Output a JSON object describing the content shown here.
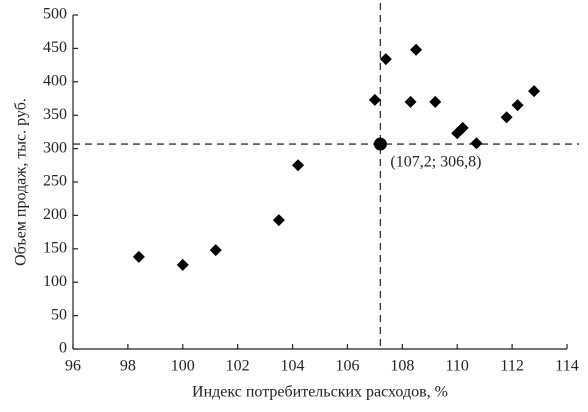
{
  "chart_data": {
    "type": "scatter",
    "x_label": "Индекс потребительских расходов, %",
    "y_label": "Объем продаж, тыс. руб.",
    "xlim": [
      96,
      114
    ],
    "xticks": [
      96,
      98,
      100,
      102,
      104,
      106,
      108,
      110,
      112,
      114
    ],
    "ylim": [
      0,
      500
    ],
    "yticks": [
      0,
      50,
      100,
      150,
      200,
      250,
      300,
      350,
      400,
      450,
      500
    ],
    "series": [
      {
        "color": "#000000",
        "marker": "diamond",
        "x": [
          98.4,
          100.0,
          101.2,
          103.5,
          104.2,
          107.0,
          107.4,
          108.5,
          108.3,
          109.2,
          110.0,
          110.2,
          110.7,
          111.8,
          112.2,
          112.8
        ],
        "values": [
          138,
          126,
          148,
          193,
          275,
          373,
          434,
          448,
          370,
          370,
          323,
          331,
          308,
          347,
          365,
          386
        ]
      }
    ],
    "annotations": [
      {
        "x": 107.2,
        "y": 306.8,
        "text": "(107,2; 306,8)",
        "color": "#000000"
      }
    ]
  }
}
